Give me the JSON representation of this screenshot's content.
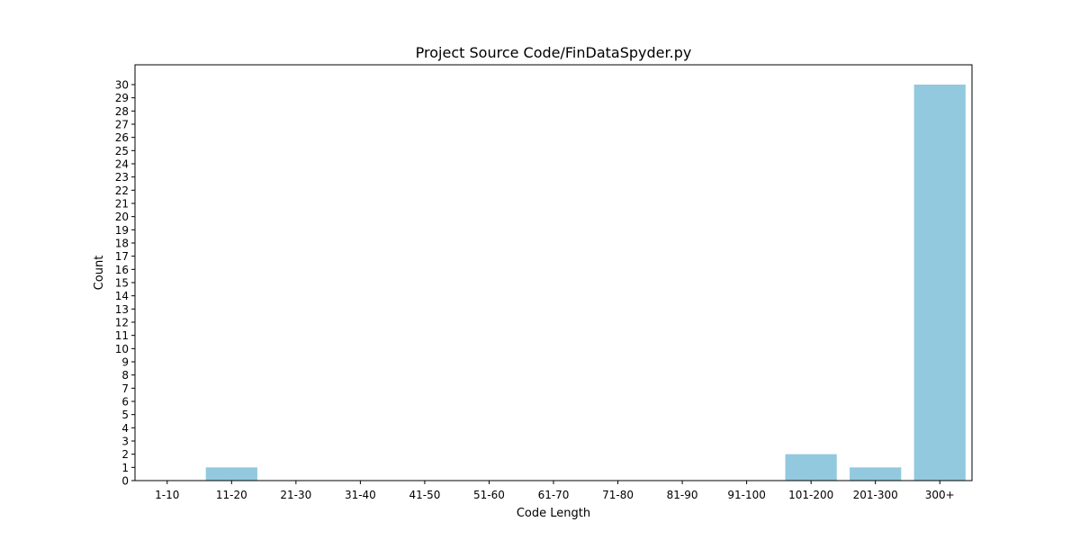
{
  "chart_data": {
    "type": "bar",
    "title": "Project Source Code/FinDataSpyder.py",
    "xlabel": "Code Length",
    "ylabel": "Count",
    "categories": [
      "1-10",
      "11-20",
      "21-30",
      "31-40",
      "41-50",
      "51-60",
      "61-70",
      "71-80",
      "81-90",
      "91-100",
      "101-200",
      "201-300",
      "300+"
    ],
    "values": [
      0,
      1,
      0,
      0,
      0,
      0,
      0,
      0,
      0,
      0,
      2,
      1,
      30
    ],
    "ylim": [
      0,
      30
    ],
    "yticks": [
      0,
      1,
      2,
      3,
      4,
      5,
      6,
      7,
      8,
      9,
      10,
      11,
      12,
      13,
      14,
      15,
      16,
      17,
      18,
      19,
      20,
      21,
      22,
      23,
      24,
      25,
      26,
      27,
      28,
      29,
      30
    ],
    "grid": false,
    "bar_color": "#92c9de"
  }
}
